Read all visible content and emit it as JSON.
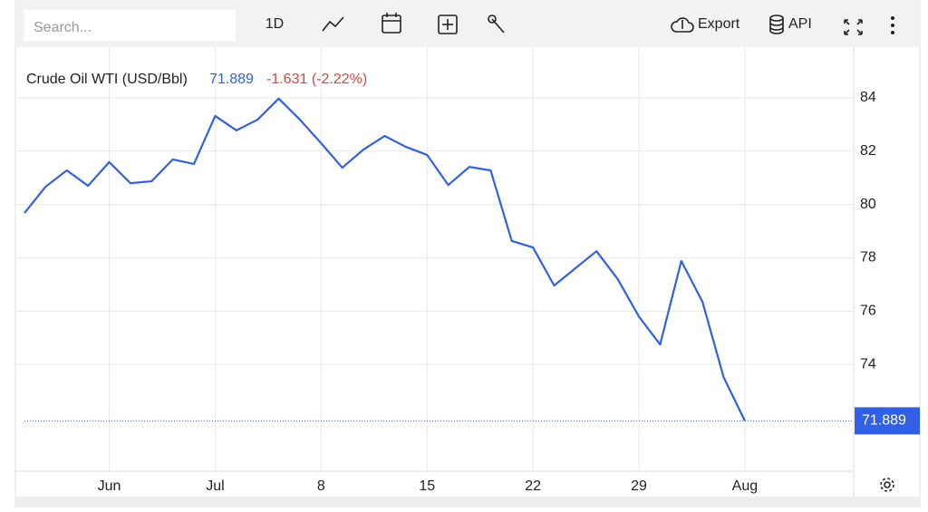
{
  "toolbar": {
    "search_placeholder": "Search...",
    "interval": "1D",
    "export": "Export",
    "api": "API"
  },
  "chart_data": {
    "type": "line",
    "title": "Crude Oil WTI (USD/Bbl)",
    "change_label": "-1.631 (-2.22%)",
    "categories": [
      null,
      null,
      null,
      null,
      "Jun",
      null,
      null,
      null,
      null,
      "Jul",
      null,
      null,
      null,
      null,
      "8",
      null,
      null,
      null,
      null,
      "15",
      null,
      null,
      null,
      null,
      "22",
      null,
      null,
      null,
      null,
      "29",
      null,
      null,
      null,
      null,
      "Aug"
    ],
    "series": [
      {
        "name": "Crude Oil WTI (USD/Bbl)",
        "color": "#3060e8",
        "values": [
          79.68,
          80.67,
          81.28,
          80.7,
          81.59,
          80.8,
          80.87,
          81.69,
          81.52,
          83.32,
          82.78,
          83.18,
          83.97,
          83.18,
          82.3,
          81.38,
          82.06,
          82.57,
          82.16,
          81.86,
          80.73,
          81.41,
          81.28,
          78.63,
          78.39,
          76.96,
          77.61,
          78.25,
          77.2,
          75.8,
          74.75,
          77.88,
          76.35,
          73.52,
          71.889
        ]
      }
    ],
    "change_color": "#d9463f",
    "ylim": [
      70,
      85.9
    ],
    "yticks": [
      74,
      76,
      78,
      80,
      82,
      84
    ],
    "grid": true
  }
}
